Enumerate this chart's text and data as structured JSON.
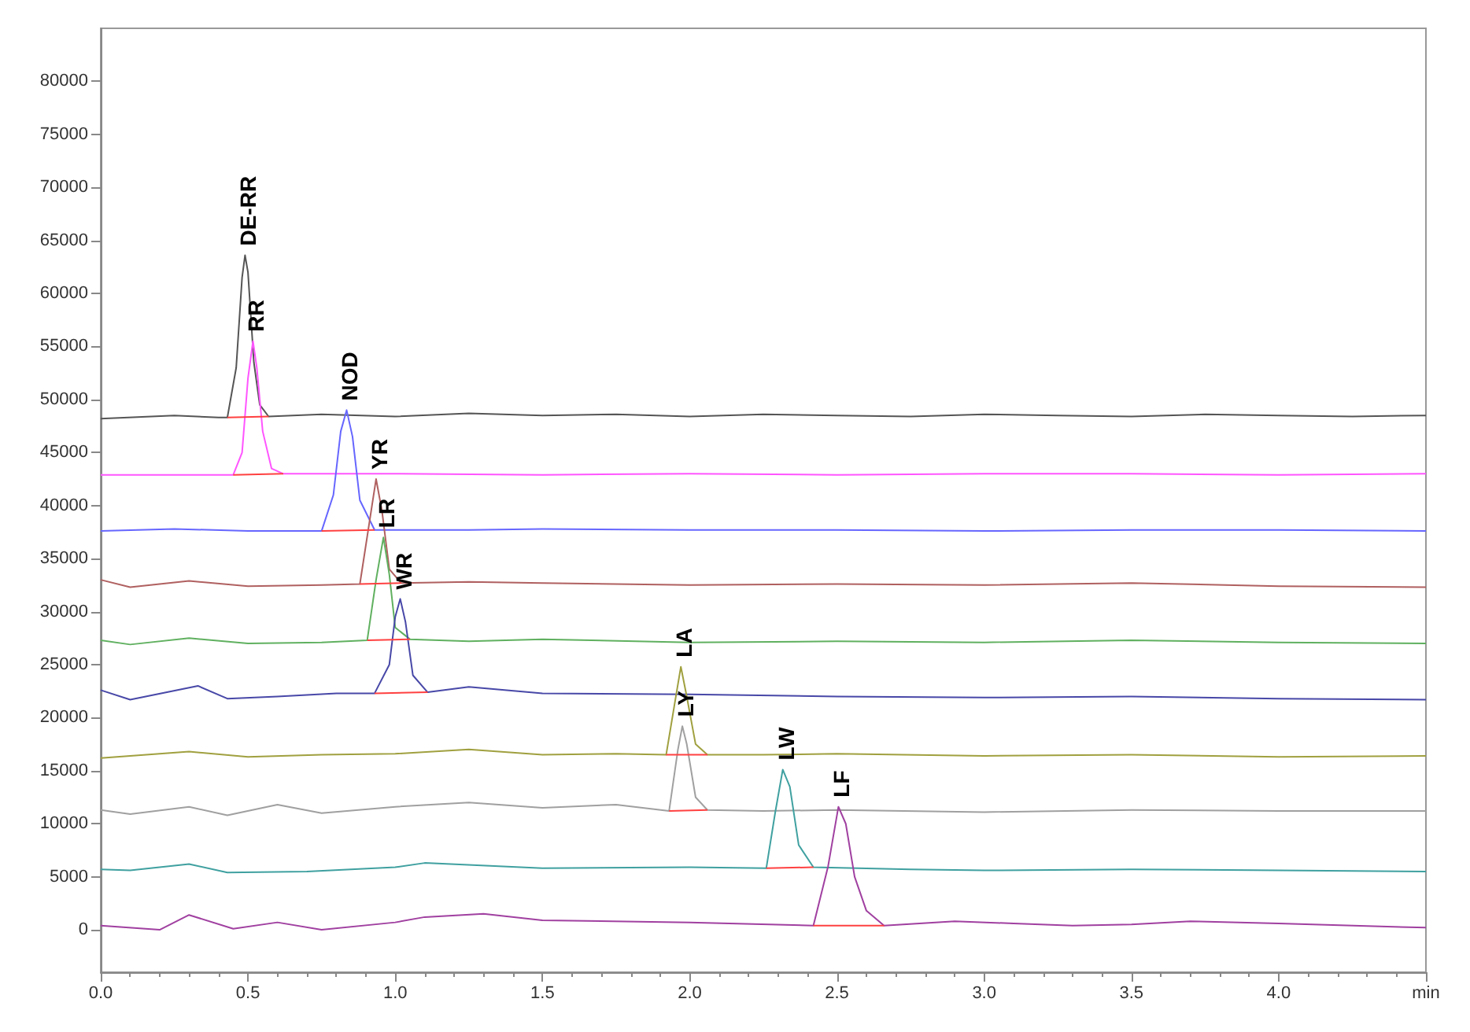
{
  "chart_data": {
    "type": "line",
    "xlim": [
      0,
      4.5
    ],
    "ylim": [
      -4000,
      85000
    ],
    "xticks": [
      {
        "value": 0,
        "label": "0.0"
      },
      0.5,
      {
        "value": 1,
        "label": "1.0"
      },
      1.5,
      {
        "value": 2,
        "label": "2.0"
      },
      2.5,
      {
        "value": 3,
        "label": "3.0"
      },
      3.5,
      {
        "value": 4,
        "label": "4.0"
      },
      {
        "value": 4.5,
        "label": "min"
      }
    ],
    "yticks": [
      0,
      5000,
      10000,
      15000,
      20000,
      25000,
      30000,
      35000,
      40000,
      45000,
      50000,
      55000,
      60000,
      65000,
      70000,
      75000,
      80000
    ],
    "grid": false,
    "marker": "none",
    "line_style": "solid",
    "series": [
      {
        "color": "#555555",
        "x": [
          0,
          0.25,
          0.4,
          0.43,
          0.46,
          0.48,
          0.49,
          0.5,
          0.52,
          0.54,
          0.57,
          0.75,
          1,
          1.25,
          1.5,
          1.75,
          2,
          2.25,
          2.5,
          2.75,
          3,
          3.25,
          3.5,
          3.75,
          4,
          4.25,
          4.5
        ],
        "values": [
          48200,
          48500,
          48300,
          48300,
          53000,
          61500,
          63600,
          62000,
          53500,
          49500,
          48400,
          48600,
          48400,
          48700,
          48500,
          48600,
          48400,
          48600,
          48500,
          48400,
          48600,
          48500,
          48400,
          48600,
          48500,
          48400,
          48500
        ]
      },
      {
        "color": "#ff55ff",
        "x": [
          0,
          0.25,
          0.45,
          0.48,
          0.5,
          0.517,
          0.53,
          0.55,
          0.58,
          0.62,
          0.75,
          1,
          1.5,
          2,
          2.5,
          3,
          3.5,
          4,
          4.5
        ],
        "values": [
          42900,
          42900,
          42900,
          45000,
          52000,
          55500,
          53000,
          47000,
          43500,
          43000,
          43000,
          43000,
          42900,
          43000,
          42900,
          43000,
          43000,
          42900,
          43000
        ]
      },
      {
        "color": "#6666ff",
        "x": [
          0,
          0.25,
          0.5,
          0.75,
          0.79,
          0.815,
          0.835,
          0.855,
          0.88,
          0.93,
          1.25,
          1.5,
          2,
          2.5,
          3,
          3.5,
          4,
          4.5
        ],
        "values": [
          37600,
          37800,
          37600,
          37600,
          41000,
          47000,
          49000,
          46500,
          40500,
          37700,
          37700,
          37800,
          37700,
          37700,
          37600,
          37700,
          37700,
          37600
        ]
      },
      {
        "color": "#b06060",
        "x": [
          0,
          0.1,
          0.3,
          0.5,
          0.75,
          0.88,
          0.91,
          0.935,
          0.955,
          0.98,
          1.02,
          1.25,
          1.5,
          2,
          2.5,
          3,
          3.5,
          4,
          4.5
        ],
        "values": [
          33000,
          32300,
          32900,
          32400,
          32500,
          32600,
          38000,
          42500,
          39500,
          34000,
          32700,
          32800,
          32700,
          32500,
          32600,
          32500,
          32700,
          32400,
          32300
        ]
      },
      {
        "color": "#60b060",
        "x": [
          0,
          0.1,
          0.3,
          0.5,
          0.75,
          0.905,
          0.935,
          0.96,
          0.98,
          1,
          1.05,
          1.25,
          1.5,
          2,
          2.5,
          3,
          3.5,
          4,
          4.5
        ],
        "values": [
          27300,
          26900,
          27500,
          27000,
          27100,
          27300,
          33000,
          37000,
          33500,
          28500,
          27400,
          27200,
          27400,
          27100,
          27200,
          27100,
          27300,
          27100,
          27000
        ]
      },
      {
        "color": "#4848a8",
        "x": [
          0,
          0.1,
          0.33,
          0.43,
          0.6,
          0.8,
          0.93,
          0.98,
          1,
          1.017,
          1.035,
          1.06,
          1.11,
          1.25,
          1.5,
          2,
          2.5,
          3,
          3.5,
          4,
          4.5
        ],
        "values": [
          22600,
          21700,
          23000,
          21800,
          22000,
          22300,
          22300,
          25000,
          29500,
          31200,
          29000,
          24000,
          22400,
          22900,
          22300,
          22200,
          22000,
          21900,
          22000,
          21800,
          21700
        ]
      },
      {
        "color": "#a0a040",
        "x": [
          0,
          0.3,
          0.5,
          0.75,
          1,
          1.25,
          1.5,
          1.75,
          1.92,
          1.95,
          1.97,
          1.99,
          2.02,
          2.06,
          2.25,
          2.5,
          3,
          3.5,
          4,
          4.5
        ],
        "values": [
          16200,
          16800,
          16300,
          16500,
          16600,
          17000,
          16500,
          16600,
          16500,
          21500,
          24800,
          22000,
          17500,
          16500,
          16500,
          16600,
          16400,
          16500,
          16300,
          16400
        ]
      },
      {
        "color": "#a0a0a0",
        "x": [
          0,
          0.1,
          0.3,
          0.43,
          0.6,
          0.75,
          1,
          1.25,
          1.5,
          1.75,
          1.93,
          1.96,
          1.975,
          1.99,
          2.02,
          2.06,
          2.25,
          2.5,
          3,
          3.5,
          4,
          4.5
        ],
        "values": [
          11300,
          10900,
          11600,
          10800,
          11800,
          11000,
          11600,
          12000,
          11500,
          11800,
          11200,
          17000,
          19200,
          17500,
          12500,
          11300,
          11200,
          11300,
          11100,
          11300,
          11200,
          11200
        ]
      },
      {
        "color": "#40a0a0",
        "x": [
          0,
          0.1,
          0.3,
          0.43,
          0.7,
          1,
          1.1,
          1.5,
          2,
          2.26,
          2.29,
          2.316,
          2.34,
          2.37,
          2.42,
          2.75,
          3,
          3.5,
          4,
          4.5
        ],
        "values": [
          5700,
          5600,
          6200,
          5400,
          5500,
          5900,
          6300,
          5800,
          5900,
          5800,
          11000,
          15100,
          13500,
          8000,
          5900,
          5700,
          5600,
          5700,
          5600,
          5500
        ]
      },
      {
        "color": "#a040a0",
        "x": [
          0,
          0.2,
          0.3,
          0.45,
          0.6,
          0.75,
          1,
          1.1,
          1.3,
          1.5,
          2,
          2.42,
          2.47,
          2.505,
          2.53,
          2.56,
          2.6,
          2.66,
          2.9,
          3.1,
          3.3,
          3.5,
          3.7,
          4,
          4.5
        ],
        "values": [
          400,
          0,
          1400,
          100,
          700,
          0,
          700,
          1200,
          1500,
          900,
          700,
          400,
          6000,
          11600,
          10000,
          5000,
          1800,
          400,
          800,
          600,
          400,
          500,
          800,
          600,
          200
        ]
      },
      {
        "color": "#ff4040",
        "x": [
          0.43,
          0.57
        ],
        "values": [
          48300,
          48400
        ]
      },
      {
        "color": "#ff4040",
        "x": [
          0.45,
          0.62
        ],
        "values": [
          42900,
          43000
        ]
      },
      {
        "color": "#ff4040",
        "x": [
          0.75,
          0.93
        ],
        "values": [
          37600,
          37700
        ]
      },
      {
        "color": "#ff4040",
        "x": [
          0.88,
          1.02
        ],
        "values": [
          32600,
          32700
        ]
      },
      {
        "color": "#ff4040",
        "x": [
          0.905,
          1.05
        ],
        "values": [
          27300,
          27400
        ]
      },
      {
        "color": "#ff4040",
        "x": [
          0.93,
          1.11
        ],
        "values": [
          22300,
          22400
        ]
      },
      {
        "color": "#ff4040",
        "x": [
          1.92,
          2.06
        ],
        "values": [
          16500,
          16500
        ]
      },
      {
        "color": "#ff4040",
        "x": [
          1.93,
          2.06
        ],
        "values": [
          11200,
          11300
        ]
      },
      {
        "color": "#ff4040",
        "x": [
          2.26,
          2.42
        ],
        "values": [
          5800,
          5900
        ]
      },
      {
        "color": "#ff4040",
        "x": [
          2.42,
          2.66
        ],
        "values": [
          400,
          400
        ]
      }
    ],
    "annotations": [
      {
        "text": "DE-RR",
        "x": 0.49,
        "y": 63600
      },
      {
        "text": "RR",
        "x": 0.517,
        "y": 55500
      },
      {
        "text": "NOD",
        "x": 0.835,
        "y": 49000
      },
      {
        "text": "YR",
        "x": 0.935,
        "y": 42500
      },
      {
        "text": "LR",
        "x": 0.96,
        "y": 37000
      },
      {
        "text": "WR",
        "x": 1.017,
        "y": 31200
      },
      {
        "text": "LA",
        "x": 1.97,
        "y": 24800
      },
      {
        "text": "LY",
        "x": 1.975,
        "y": 19200
      },
      {
        "text": "LW",
        "x": 2.316,
        "y": 15100
      },
      {
        "text": "LF",
        "x": 2.505,
        "y": 11600
      }
    ]
  }
}
